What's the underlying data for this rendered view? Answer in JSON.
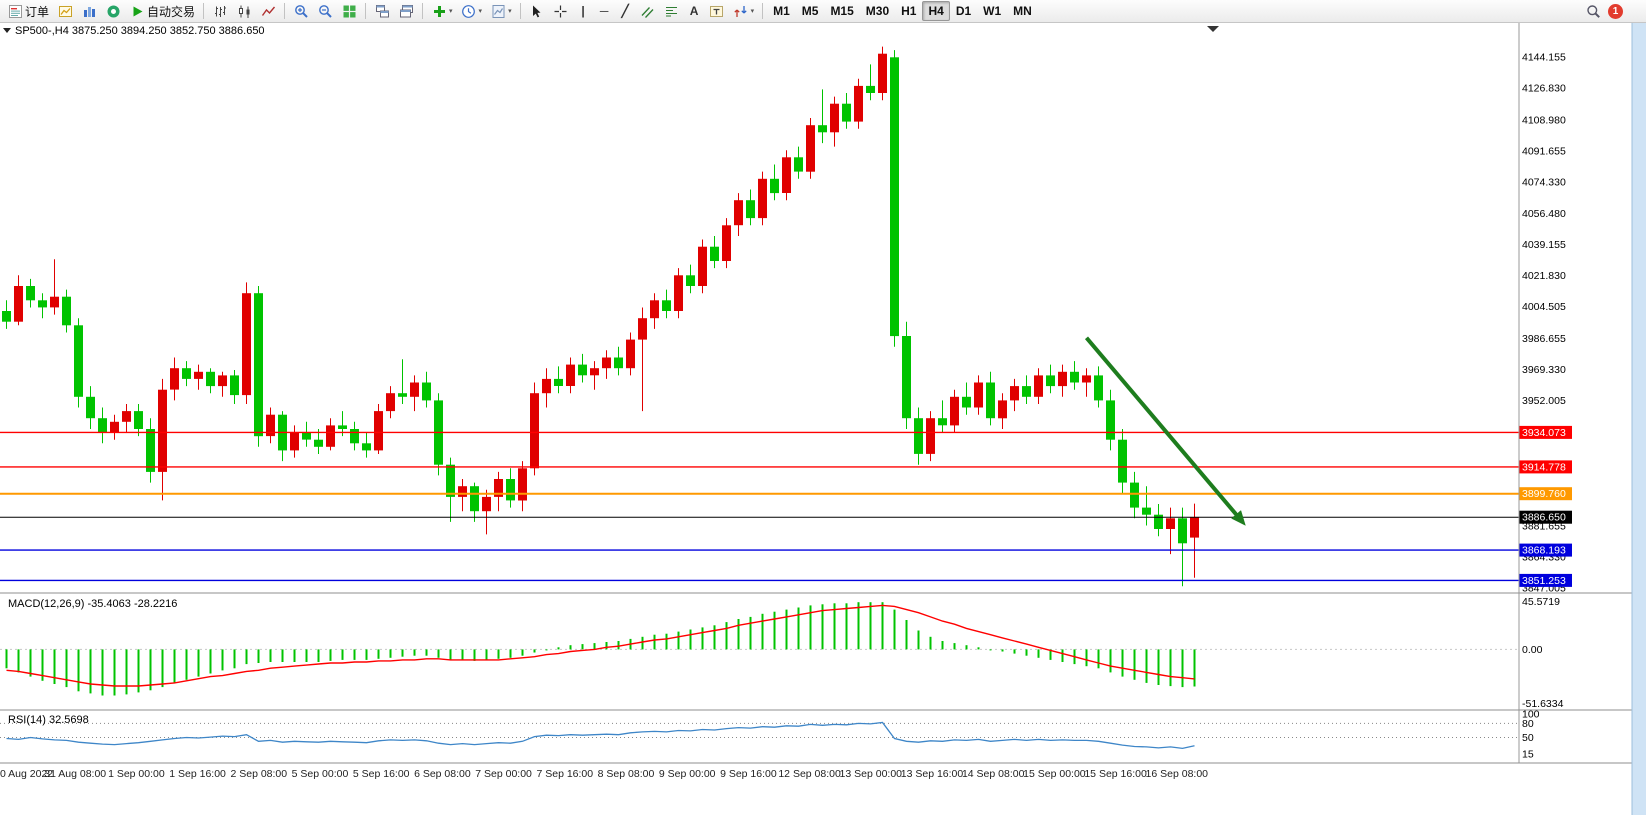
{
  "toolbar": {
    "notification_count": "1",
    "groups": [
      {
        "items": [
          {
            "name": "new-order-button",
            "icon": "neworder",
            "label": "订单"
          },
          {
            "name": "new-chart-button",
            "icon": "newchart"
          },
          {
            "name": "profiles-button",
            "icon": "profiles"
          },
          {
            "name": "community-button",
            "icon": "community"
          },
          {
            "name": "auto-trading-button",
            "icon": "play",
            "label": "自动交易"
          }
        ]
      },
      {
        "items": [
          {
            "name": "bar-chart-button",
            "icon": "bars"
          },
          {
            "name": "candlestick-chart-button",
            "icon": "candles"
          },
          {
            "name": "line-chart-button",
            "icon": "linechart"
          }
        ]
      },
      {
        "items": [
          {
            "name": "zoom-in-button",
            "icon": "zoomin"
          },
          {
            "name": "zoom-out-button",
            "icon": "zoomout"
          },
          {
            "name": "tile-windows-button",
            "icon": "tile"
          }
        ]
      },
      {
        "items": [
          {
            "name": "arrange-windows-button",
            "icon": "arrange"
          },
          {
            "name": "cascade-windows-button",
            "icon": "cascade"
          }
        ]
      },
      {
        "items": [
          {
            "name": "add-indicator-button",
            "icon": "addindicator",
            "dropdown": true
          },
          {
            "name": "periods-button",
            "icon": "clock",
            "dropdown": true
          },
          {
            "name": "templates-button",
            "icon": "template",
            "dropdown": true
          }
        ]
      },
      {
        "items": [
          {
            "name": "cursor-button",
            "icon": "cursor"
          },
          {
            "name": "crosshair-button",
            "icon": "crosshair"
          },
          {
            "name": "vertical-line-button",
            "glyph": "|"
          },
          {
            "name": "horizontal-line-button",
            "glyph": "─"
          },
          {
            "name": "trendline-button",
            "glyph": "╱"
          },
          {
            "name": "equidistant-channel-button",
            "icon": "channel"
          },
          {
            "name": "fibonacci-button",
            "icon": "fibo"
          },
          {
            "name": "text-button",
            "glyph": "A"
          },
          {
            "name": "text-label-button",
            "icon": "textlabel"
          },
          {
            "name": "arrows-button",
            "icon": "shapes",
            "dropdown": true
          }
        ]
      },
      {
        "items": [
          {
            "name": "timeframe-m1",
            "label": "M1",
            "tf": true
          },
          {
            "name": "timeframe-m5",
            "label": "M5",
            "tf": true
          },
          {
            "name": "timeframe-m15",
            "label": "M15",
            "tf": true
          },
          {
            "name": "timeframe-m30",
            "label": "M30",
            "tf": true
          },
          {
            "name": "timeframe-h1",
            "label": "H1",
            "tf": true
          },
          {
            "name": "timeframe-h4",
            "label": "H4",
            "tf": true,
            "active": true
          },
          {
            "name": "timeframe-d1",
            "label": "D1",
            "tf": true
          },
          {
            "name": "timeframe-w1",
            "label": "W1",
            "tf": true
          },
          {
            "name": "timeframe-mn",
            "label": "MN",
            "tf": true
          }
        ]
      }
    ]
  },
  "chart": {
    "symbol_line": "SP500-,H4 3875.250 3894.250 3852.750 3886.650"
  },
  "chart_data": {
    "type": "candlestick",
    "symbol": "SP500-",
    "timeframe": "H4",
    "ohlc_display": {
      "open": "3875.250",
      "high": "3894.250",
      "low": "3852.750",
      "close": "3886.650"
    },
    "colors": {
      "up": "#E00000",
      "down": "#00C300"
    },
    "price_axis": {
      "ticks": [
        "4144.155",
        "4126.830",
        "4108.980",
        "4091.655",
        "4074.330",
        "4056.480",
        "4039.155",
        "4021.830",
        "4004.505",
        "3986.655",
        "3969.330",
        "3952.005",
        "3881.655",
        "3864.330",
        "3847.005"
      ]
    },
    "time_axis": [
      "0 Aug 2022",
      "31 Aug 08:00",
      "1 Sep 00:00",
      "1 Sep 16:00",
      "2 Sep 08:00",
      "5 Sep 00:00",
      "5 Sep 16:00",
      "6 Sep 08:00",
      "7 Sep 00:00",
      "7 Sep 16:00",
      "8 Sep 08:00",
      "9 Sep 00:00",
      "9 Sep 16:00",
      "12 Sep 08:00",
      "13 Sep 00:00",
      "13 Sep 16:00",
      "14 Sep 08:00",
      "15 Sep 00:00",
      "15 Sep 16:00",
      "16 Sep 08:00"
    ],
    "levels": [
      {
        "name": "resistance-line-1",
        "label": "3934.073",
        "price": 3934.073,
        "color": "#FF0000",
        "width": 1.4
      },
      {
        "name": "resistance-line-2",
        "label": "3914.778",
        "price": 3914.778,
        "color": "#FF0000",
        "width": 1.4
      },
      {
        "name": "pivot-line",
        "label": "3899.760",
        "price": 3899.76,
        "color": "#FF9900",
        "width": 2
      },
      {
        "name": "current-price-line",
        "label": "3886.650",
        "price": 3886.65,
        "color": "#000000",
        "width": 1
      },
      {
        "name": "support-line-1",
        "label": "3868.193",
        "price": 3868.193,
        "color": "#0000DD",
        "width": 1.4
      },
      {
        "name": "support-line-2",
        "label": "3851.253",
        "price": 3851.253,
        "color": "#0000DD",
        "width": 1.4
      }
    ],
    "annotation_arrow": {
      "from_bar": 90,
      "from_price": 3987,
      "to_bar": 103,
      "to_price": 3884,
      "color": "#1E7D1E"
    },
    "candles": [
      [
        4002,
        4008,
        3992,
        3996
      ],
      [
        3996,
        4022,
        3994,
        4016
      ],
      [
        4016,
        4020,
        4004,
        4008
      ],
      [
        4008,
        4012,
        3998,
        4004
      ],
      [
        4004,
        4031,
        4000,
        4010
      ],
      [
        4010,
        4014,
        3990,
        3994
      ],
      [
        3994,
        3998,
        3948,
        3954
      ],
      [
        3954,
        3960,
        3936,
        3942
      ],
      [
        3942,
        3948,
        3928,
        3934
      ],
      [
        3934,
        3944,
        3930,
        3940
      ],
      [
        3940,
        3950,
        3934,
        3946
      ],
      [
        3946,
        3950,
        3932,
        3936
      ],
      [
        3936,
        3942,
        3906,
        3912
      ],
      [
        3912,
        3964,
        3896,
        3958
      ],
      [
        3958,
        3976,
        3952,
        3970
      ],
      [
        3970,
        3974,
        3960,
        3964
      ],
      [
        3964,
        3972,
        3958,
        3968
      ],
      [
        3968,
        3970,
        3956,
        3960
      ],
      [
        3960,
        3968,
        3954,
        3966
      ],
      [
        3966,
        3969,
        3950,
        3955
      ],
      [
        3955,
        4018,
        3950,
        4012
      ],
      [
        4012,
        4016,
        3926,
        3932
      ],
      [
        3932,
        3948,
        3928,
        3944
      ],
      [
        3944,
        3946,
        3918,
        3924
      ],
      [
        3924,
        3938,
        3920,
        3934
      ],
      [
        3934,
        3940,
        3926,
        3930
      ],
      [
        3930,
        3936,
        3922,
        3926
      ],
      [
        3926,
        3942,
        3924,
        3938
      ],
      [
        3938,
        3946,
        3932,
        3936
      ],
      [
        3936,
        3940,
        3924,
        3928
      ],
      [
        3928,
        3934,
        3920,
        3924
      ],
      [
        3924,
        3950,
        3922,
        3946
      ],
      [
        3946,
        3960,
        3942,
        3956
      ],
      [
        3956,
        3975,
        3950,
        3954
      ],
      [
        3954,
        3966,
        3946,
        3962
      ],
      [
        3962,
        3968,
        3948,
        3952
      ],
      [
        3952,
        3956,
        3910,
        3916
      ],
      [
        3916,
        3920,
        3884,
        3898
      ],
      [
        3898,
        3908,
        3890,
        3904
      ],
      [
        3904,
        3906,
        3884,
        3890
      ],
      [
        3890,
        3902,
        3877,
        3898
      ],
      [
        3898,
        3912,
        3890,
        3908
      ],
      [
        3908,
        3914,
        3892,
        3896
      ],
      [
        3896,
        3918,
        3890,
        3914
      ],
      [
        3914,
        3962,
        3910,
        3956
      ],
      [
        3956,
        3970,
        3948,
        3964
      ],
      [
        3964,
        3971,
        3956,
        3960
      ],
      [
        3960,
        3976,
        3956,
        3972
      ],
      [
        3972,
        3978,
        3962,
        3966
      ],
      [
        3966,
        3974,
        3958,
        3970
      ],
      [
        3970,
        3980,
        3964,
        3976
      ],
      [
        3976,
        3982,
        3966,
        3970
      ],
      [
        3970,
        3990,
        3966,
        3986
      ],
      [
        3986,
        4004,
        3946,
        3998
      ],
      [
        3998,
        4012,
        3992,
        4008
      ],
      [
        4008,
        4014,
        3998,
        4002
      ],
      [
        4002,
        4026,
        3998,
        4022
      ],
      [
        4022,
        4028,
        4012,
        4016
      ],
      [
        4016,
        4042,
        4012,
        4038
      ],
      [
        4038,
        4044,
        4026,
        4030
      ],
      [
        4030,
        4054,
        4026,
        4050
      ],
      [
        4050,
        4068,
        4044,
        4064
      ],
      [
        4064,
        4070,
        4050,
        4054
      ],
      [
        4054,
        4080,
        4050,
        4076
      ],
      [
        4076,
        4084,
        4064,
        4068
      ],
      [
        4068,
        4092,
        4064,
        4088
      ],
      [
        4088,
        4094,
        4076,
        4080
      ],
      [
        4080,
        4110,
        4076,
        4106
      ],
      [
        4106,
        4126,
        4096,
        4102
      ],
      [
        4102,
        4122,
        4094,
        4118
      ],
      [
        4118,
        4124,
        4104,
        4108
      ],
      [
        4108,
        4132,
        4104,
        4128
      ],
      [
        4128,
        4140,
        4120,
        4124
      ],
      [
        4124,
        4150,
        4120,
        4146
      ],
      [
        4144,
        4148,
        3982,
        3988
      ],
      [
        3988,
        3996,
        3936,
        3942
      ],
      [
        3942,
        3948,
        3916,
        3922
      ],
      [
        3922,
        3946,
        3918,
        3942
      ],
      [
        3942,
        3952,
        3934,
        3938
      ],
      [
        3938,
        3958,
        3934,
        3954
      ],
      [
        3954,
        3962,
        3944,
        3948
      ],
      [
        3948,
        3966,
        3944,
        3962
      ],
      [
        3962,
        3968,
        3938,
        3942
      ],
      [
        3942,
        3956,
        3936,
        3952
      ],
      [
        3952,
        3964,
        3946,
        3960
      ],
      [
        3960,
        3966,
        3950,
        3954
      ],
      [
        3954,
        3970,
        3950,
        3966
      ],
      [
        3966,
        3972,
        3956,
        3960
      ],
      [
        3960,
        3972,
        3954,
        3968
      ],
      [
        3968,
        3974,
        3958,
        3962
      ],
      [
        3962,
        3970,
        3954,
        3966
      ],
      [
        3966,
        3971,
        3948,
        3952
      ],
      [
        3952,
        3958,
        3924,
        3930
      ],
      [
        3930,
        3936,
        3900,
        3906
      ],
      [
        3906,
        3912,
        3886,
        3892
      ],
      [
        3892,
        3904,
        3882,
        3888
      ],
      [
        3888,
        3894,
        3876,
        3880
      ],
      [
        3880,
        3892,
        3866,
        3886
      ],
      [
        3886,
        3892,
        3848,
        3872
      ],
      [
        3875.25,
        3894.25,
        3852.75,
        3886.65
      ]
    ],
    "macd": {
      "label": "MACD(12,26,9) -35.4063 -28.2216",
      "scale_labels": [
        "45.5719",
        "0.00",
        "-51.6334"
      ],
      "hist_color": "#00C300",
      "signal_color": "#FF0000",
      "histogram": [
        -18,
        -22,
        -26,
        -30,
        -33,
        -36,
        -40,
        -42,
        -44,
        -44,
        -43,
        -41,
        -39,
        -36,
        -32,
        -29,
        -26,
        -23,
        -20,
        -18,
        -14,
        -13,
        -12,
        -12,
        -12,
        -12,
        -12,
        -11,
        -10,
        -10,
        -10,
        -9,
        -8,
        -7,
        -6,
        -6,
        -8,
        -10,
        -10,
        -11,
        -10,
        -9,
        -8,
        -6,
        -3,
        0,
        2,
        4,
        5,
        6,
        7,
        8,
        10,
        12,
        14,
        15,
        17,
        19,
        21,
        23,
        26,
        29,
        31,
        34,
        36,
        38,
        40,
        42,
        43,
        44,
        44,
        45,
        45,
        45,
        38,
        28,
        18,
        12,
        8,
        6,
        4,
        2,
        0,
        -2,
        -4,
        -6,
        -8,
        -10,
        -12,
        -14,
        -16,
        -18,
        -22,
        -26,
        -29,
        -32,
        -34,
        -35,
        -36,
        -35.4
      ],
      "signal": [
        -20,
        -21,
        -23,
        -25,
        -27,
        -29,
        -31,
        -33,
        -34,
        -35,
        -35,
        -35,
        -34,
        -33,
        -32,
        -30,
        -28,
        -26,
        -25,
        -23,
        -21,
        -20,
        -18,
        -17,
        -16,
        -15,
        -14,
        -13,
        -13,
        -12,
        -12,
        -11,
        -11,
        -10,
        -10,
        -9,
        -9,
        -10,
        -10,
        -10,
        -10,
        -10,
        -9,
        -8,
        -7,
        -5,
        -4,
        -2,
        -1,
        0,
        2,
        3,
        5,
        7,
        9,
        10,
        12,
        14,
        16,
        18,
        20,
        23,
        25,
        27,
        29,
        31,
        33,
        35,
        37,
        38,
        39,
        40,
        41,
        42,
        41,
        38,
        35,
        31,
        27,
        24,
        20,
        17,
        14,
        11,
        8,
        5,
        2,
        -1,
        -4,
        -7,
        -10,
        -13,
        -16,
        -18,
        -20,
        -22,
        -24,
        -26,
        -27,
        -28.2
      ]
    },
    "rsi": {
      "label": "RSI(14) 32.5698",
      "scale_labels": [
        "100",
        "80",
        "50",
        "15"
      ],
      "levels": [
        80,
        50
      ],
      "color": "#3E86C8",
      "values": [
        48,
        46,
        50,
        47,
        45,
        44,
        40,
        38,
        36,
        35,
        37,
        39,
        42,
        45,
        48,
        50,
        49,
        51,
        53,
        52,
        56,
        42,
        44,
        40,
        42,
        41,
        40,
        42,
        41,
        40,
        39,
        43,
        45,
        44,
        45,
        43,
        38,
        35,
        37,
        35,
        37,
        39,
        38,
        42,
        52,
        55,
        54,
        56,
        55,
        56,
        57,
        56,
        60,
        62,
        63,
        62,
        65,
        64,
        67,
        66,
        69,
        71,
        70,
        73,
        72,
        75,
        74,
        78,
        76,
        78,
        77,
        80,
        79,
        82,
        48,
        42,
        40,
        43,
        42,
        45,
        44,
        46,
        42,
        44,
        46,
        44,
        46,
        44,
        45,
        44,
        44,
        42,
        38,
        34,
        31,
        30,
        28,
        30,
        27,
        32.57
      ]
    }
  }
}
